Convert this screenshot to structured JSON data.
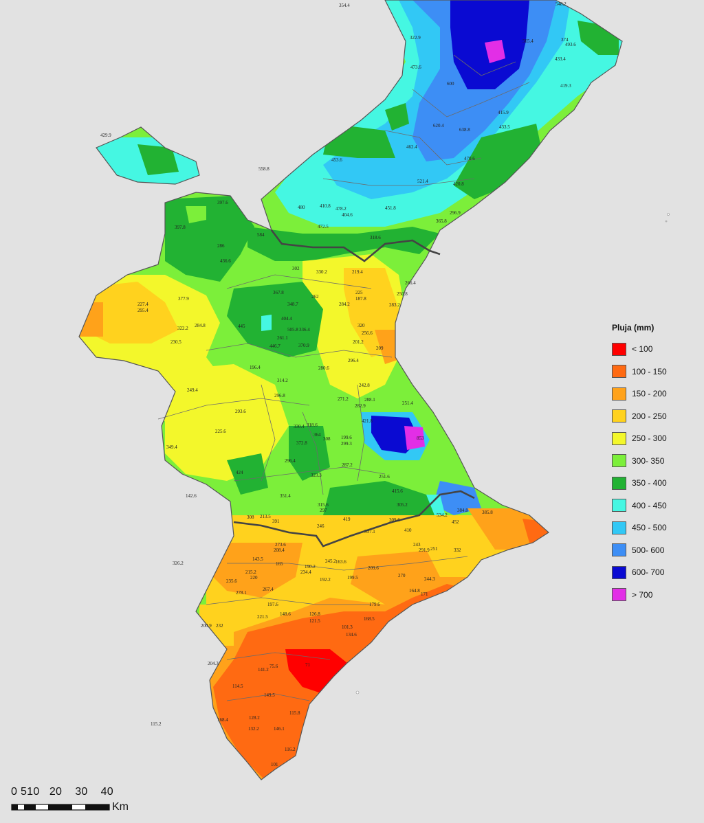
{
  "legend": {
    "title": "Pluja (mm)",
    "classes": [
      {
        "label": "< 100",
        "color": "#ff0000"
      },
      {
        "label": "100 - 150",
        "color": "#ff6a12"
      },
      {
        "label": "150 - 200",
        "color": "#ffa21a"
      },
      {
        "label": "200 - 250",
        "color": "#ffd21e"
      },
      {
        "label": "250 - 300",
        "color": "#f3f72b"
      },
      {
        "label": "300- 350",
        "color": "#7cef3a"
      },
      {
        "label": "350 - 400",
        "color": "#22b233"
      },
      {
        "label": "400 - 450",
        "color": "#45f7e2"
      },
      {
        "label": "450 - 500",
        "color": "#32c8f5"
      },
      {
        "label": "500- 600",
        "color": "#3d8ef5"
      },
      {
        "label": "600- 700",
        "color": "#0a0ad2"
      },
      {
        "label": "> 700",
        "color": "#e22ee6"
      }
    ]
  },
  "scale": {
    "ticks": [
      "0",
      "5",
      "10",
      "20",
      "30",
      "40"
    ],
    "units": "Km"
  },
  "station_labels": [
    "354.4",
    "548.2",
    "322.9",
    "473.6",
    "600",
    "565.4",
    "433.4",
    "374",
    "493.6",
    "419.3",
    "429.9",
    "558.8",
    "453.6",
    "462.4",
    "521.4",
    "620.4",
    "638.8",
    "470.6",
    "415.9",
    "433.5",
    "397.6",
    "480",
    "410.8",
    "478.2",
    "404.6",
    "451.8",
    "420.8",
    "472.5",
    "584",
    "318.6",
    "296.9",
    "365.8",
    "397.8",
    "286",
    "436.6",
    "302",
    "330.2",
    "219.4",
    "266.4",
    "227.4",
    "295.4",
    "377.9",
    "367.8",
    "348.7",
    "262",
    "284.2",
    "250.8",
    "283.2",
    "225",
    "187.8",
    "404.4",
    "445",
    "505.8",
    "336.4",
    "261.1",
    "446.7",
    "370.9",
    "320",
    "256.6",
    "201.2",
    "322.2",
    "284.8",
    "230.5",
    "209",
    "296.4",
    "196.4",
    "280.6",
    "242.8",
    "314.2",
    "249.4",
    "296.8",
    "293.6",
    "271.2",
    "288.1",
    "282.9",
    "251.4",
    "225.6",
    "330.4",
    "318.6",
    "364",
    "308",
    "199.6",
    "299.3",
    "421.8",
    "853",
    "349.4",
    "372.8",
    "287.2",
    "323.3",
    "296.4",
    "424",
    "251.6",
    "142.6",
    "351.4",
    "305.2",
    "415.6",
    "534.2",
    "452",
    "384.8",
    "385.8",
    "308",
    "213.5",
    "391",
    "315.6",
    "297",
    "246",
    "419",
    "337.1",
    "309.6",
    "410",
    "273.6",
    "208.4",
    "143.5",
    "165",
    "190.2",
    "234.4",
    "245.2",
    "163.6",
    "209.6",
    "243",
    "291.9",
    "251",
    "332",
    "326.2",
    "215.2",
    "220",
    "192.2",
    "199.5",
    "270",
    "244.3",
    "235.6",
    "278.1",
    "267.4",
    "164.8",
    "171",
    "197.6",
    "221.5",
    "148.6",
    "126.8",
    "121.5",
    "179.6",
    "168.5",
    "200.9",
    "232",
    "101.3",
    "134.6",
    "204.3",
    "141.2",
    "75.6",
    "71",
    "114.5",
    "149.5",
    "128.2",
    "115.8",
    "132.2",
    "146.1",
    "115.2",
    "168.4",
    "101",
    "116.2"
  ]
}
